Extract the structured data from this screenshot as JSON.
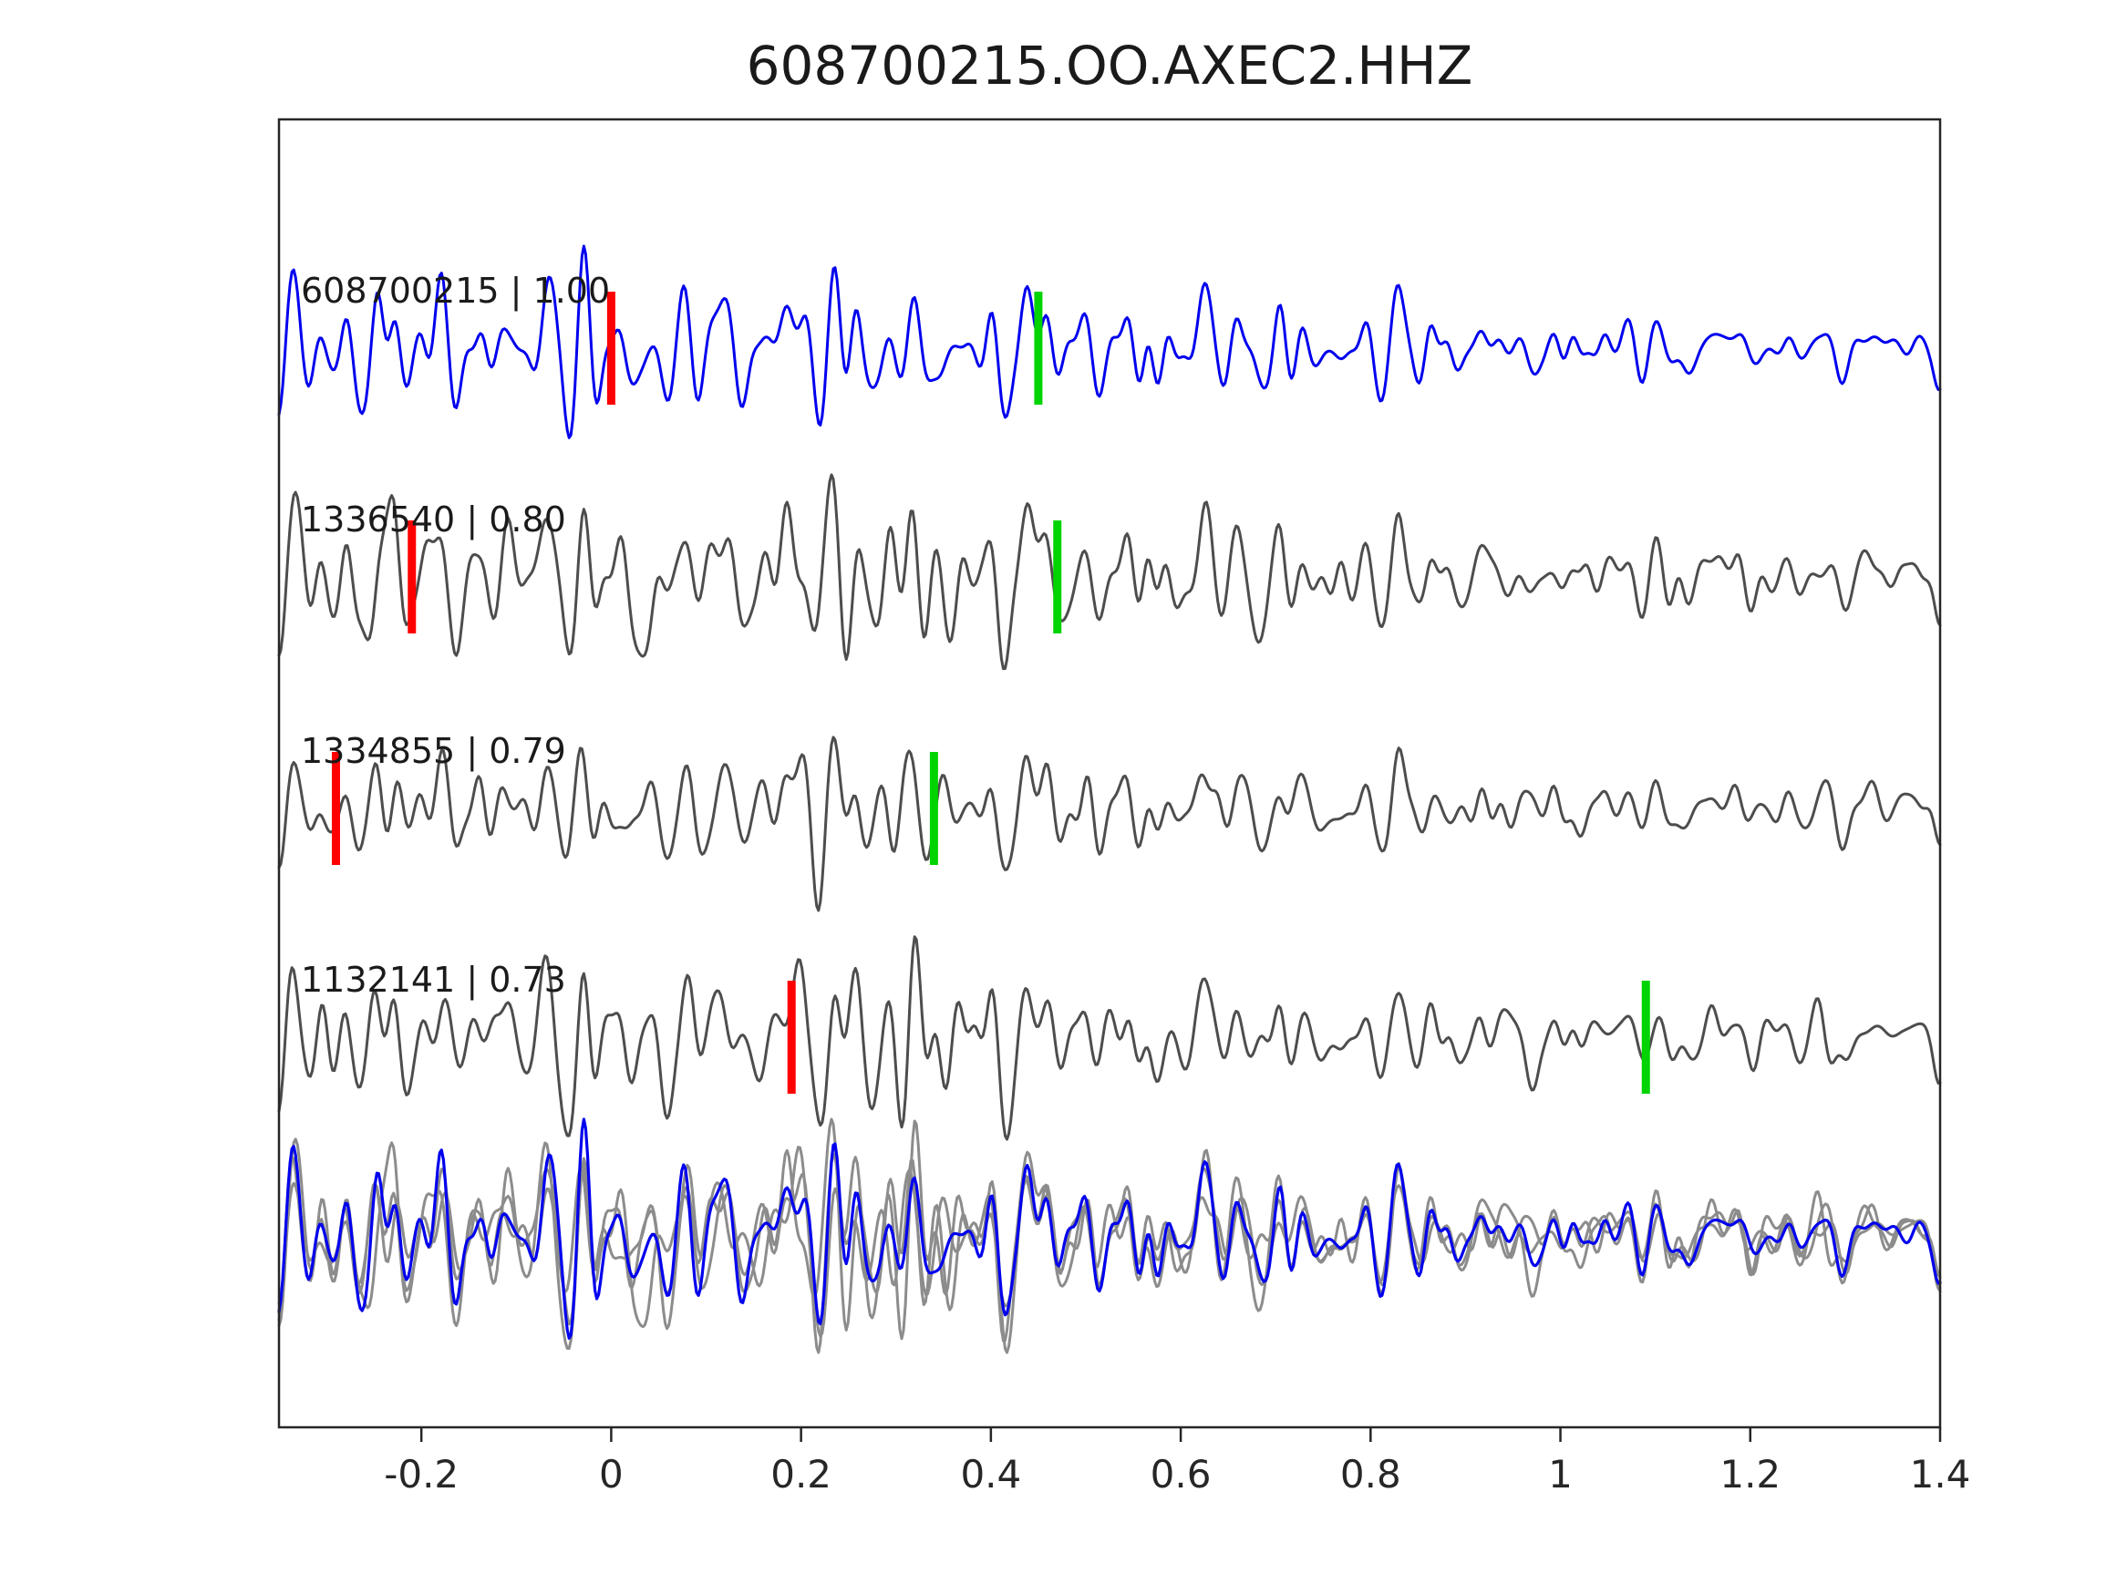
{
  "figure": {
    "title": "608700215.OO.AXEC2.HHZ"
  },
  "chart_data": {
    "type": "line",
    "title": "608700215.OO.AXEC2.HHZ",
    "subtitle": "",
    "xlabel": "",
    "ylabel": "",
    "xlim": [
      -0.35,
      1.4
    ],
    "grid": false,
    "legend_position": "none",
    "x_ticks": [
      -0.2,
      0,
      0.2,
      0.4,
      0.6,
      0.8,
      1,
      1.2,
      1.4
    ],
    "x_tick_labels": [
      "-0.2",
      "0",
      "0.2",
      "0.4",
      "0.6",
      "0.8",
      "1",
      "1.2",
      "1.4"
    ],
    "colors": {
      "template_trace": "#0000ee",
      "detection_trace": "#4d4d4d",
      "overlay_gray": "#8c8c8c",
      "pick_marker_red": "#ff0000",
      "pick_marker_green": "#00d400",
      "axis": "#262626",
      "text": "#1a1a1a"
    },
    "traces": [
      {
        "label": "608700215 | 1.00",
        "event_id": "608700215",
        "correlation": 1.0,
        "role": "template",
        "red_marker_x": 0.0,
        "green_marker_x": 0.45
      },
      {
        "label": "1336540 | 0.80",
        "event_id": "1336540",
        "correlation": 0.8,
        "role": "detection",
        "red_marker_x": -0.21,
        "green_marker_x": 0.47
      },
      {
        "label": "1334855 | 0.79",
        "event_id": "1334855",
        "correlation": 0.79,
        "role": "detection",
        "red_marker_x": -0.29,
        "green_marker_x": 0.34
      },
      {
        "label": "1132141 | 0.73",
        "event_id": "1132141",
        "correlation": 0.73,
        "role": "detection",
        "red_marker_x": 0.19,
        "green_marker_x": 1.09
      }
    ],
    "overlay_row": {
      "description": "All four waveforms superimposed on one line: detections in gray, template trace in blue, aligned on the common burst near x = 0.25"
    },
    "waveform_character": {
      "kind": "band-limited seismic noise",
      "burst_center_x": 0.23,
      "note": "Amplitude builds to a burst around x = 0.1 to 0.35 and gradually decays toward the right edge; traces share a correlated wavelet proportional to their correlation value."
    }
  }
}
